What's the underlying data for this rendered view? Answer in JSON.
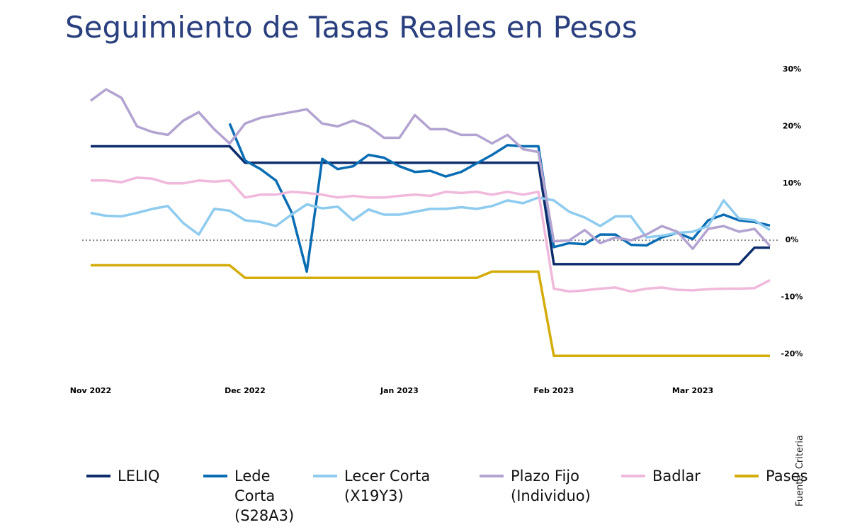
{
  "chart_data": {
    "type": "line",
    "title": "Seguimiento de Tasas Reales en Pesos",
    "source": "Fuente: Criteria",
    "categories": [
      "Nov 2022",
      null,
      null,
      null,
      null,
      null,
      null,
      null,
      null,
      null,
      "Dec 2022",
      null,
      null,
      null,
      null,
      null,
      null,
      null,
      null,
      null,
      "Jan 2023",
      null,
      null,
      null,
      null,
      null,
      null,
      null,
      null,
      null,
      "Feb 2023",
      null,
      null,
      null,
      null,
      null,
      null,
      null,
      null,
      "Mar 2023",
      null,
      null,
      null,
      null,
      null
    ],
    "ylim": [
      -22,
      30
    ],
    "yticks": [
      {
        "value": 30,
        "label": "30%"
      },
      {
        "value": 20,
        "label": "20%"
      },
      {
        "value": 10,
        "label": "10%"
      },
      {
        "value": 0,
        "label": "0%"
      },
      {
        "value": -10,
        "label": "-10%"
      },
      {
        "value": -20,
        "label": "-20%"
      }
    ],
    "y_axis_side": "right",
    "series": [
      {
        "name": "LELIQ",
        "color": "#0d2d6c",
        "values": [
          16.5,
          16.5,
          16.5,
          16.5,
          16.5,
          16.5,
          16.5,
          16.5,
          16.5,
          16.5,
          13.6,
          13.6,
          13.6,
          13.6,
          13.6,
          13.6,
          13.6,
          13.6,
          13.6,
          13.6,
          13.6,
          13.6,
          13.6,
          13.6,
          13.6,
          13.6,
          13.6,
          13.6,
          13.6,
          13.6,
          -4.2,
          -4.2,
          -4.2,
          -4.2,
          -4.2,
          -4.2,
          -4.2,
          -4.2,
          -4.2,
          -4.2,
          -4.2,
          -4.2,
          -4.2,
          -1.3,
          -1.3
        ]
      },
      {
        "name": "Lede Corta (S28A3)",
        "color": "#0a6db3",
        "values": [
          null,
          null,
          null,
          null,
          null,
          null,
          null,
          null,
          null,
          20.5,
          14,
          12.5,
          10.5,
          5,
          -5.5,
          14.3,
          12.5,
          13,
          15,
          14.5,
          13,
          12,
          12.2,
          11.2,
          12,
          13.5,
          15,
          16.7,
          16.5,
          16.5,
          -1.2,
          -0.5,
          -0.7,
          1,
          1,
          -0.8,
          -0.9,
          0.5,
          1.3,
          0.2,
          3.5,
          4.5,
          3.5,
          3.2,
          2.6
        ]
      },
      {
        "name": "Lecer Corta (X19Y3)",
        "color": "#8ecbef",
        "values": [
          4.8,
          4.3,
          4.2,
          4.8,
          5.5,
          6,
          3,
          1,
          5.5,
          5.2,
          3.5,
          3.2,
          2.5,
          4.5,
          6.3,
          5.6,
          5.9,
          3.5,
          5.4,
          4.5,
          4.5,
          5,
          5.5,
          5.5,
          5.8,
          5.5,
          6,
          7,
          6.5,
          7.5,
          7,
          5,
          4,
          2.5,
          4.2,
          4.2,
          0.5,
          0.8,
          1.3,
          1.5,
          2.5,
          7,
          3.8,
          3.5,
          1.8
        ]
      },
      {
        "name": "Plazo Fijo (Individuo)",
        "color": "#b3a3d1",
        "values": [
          24.5,
          26.5,
          25,
          20,
          19,
          18.5,
          21,
          22.5,
          19.5,
          17,
          20.5,
          21.5,
          22,
          22.5,
          23,
          20.5,
          20,
          21,
          20,
          18,
          18,
          22,
          19.5,
          19.5,
          18.5,
          18.5,
          17,
          18.5,
          16,
          15.5,
          -0.2,
          0,
          1.8,
          -0.5,
          0.5,
          0,
          1,
          2.5,
          1.5,
          -1.5,
          2,
          2.5,
          1.5,
          2,
          -1
        ]
      },
      {
        "name": "Badlar",
        "color": "#f0b9dc",
        "values": [
          10.5,
          10.5,
          10.2,
          11,
          10.8,
          10,
          10,
          10.5,
          10.3,
          10.5,
          7.5,
          8,
          8,
          8.5,
          8.3,
          8,
          7.5,
          7.8,
          7.5,
          7.5,
          7.8,
          8,
          7.8,
          8.5,
          8.3,
          8.5,
          8,
          8.5,
          8,
          8.5,
          -8.5,
          -9,
          -8.8,
          -8.5,
          -8.3,
          -9,
          -8.5,
          -8.3,
          -8.7,
          -8.8,
          -8.6,
          -8.5,
          -8.5,
          -8.4,
          -7
        ]
      },
      {
        "name": "Pases",
        "color": "#d4ad0a",
        "values": [
          -4.4,
          -4.4,
          -4.4,
          -4.4,
          -4.4,
          -4.4,
          -4.4,
          -4.4,
          -4.4,
          -4.4,
          -6.6,
          -6.6,
          -6.6,
          -6.6,
          -6.6,
          -6.6,
          -6.6,
          -6.6,
          -6.6,
          -6.6,
          -6.6,
          -6.6,
          -6.6,
          -6.6,
          -6.6,
          -6.6,
          -5.5,
          -5.5,
          -5.5,
          -5.5,
          -20.3,
          -20.3,
          -20.3,
          -20.3,
          -20.3,
          -20.3,
          -20.3,
          -20.3,
          -20.3,
          -20.3,
          -20.3,
          -20.3,
          -20.3,
          -20.3,
          -20.3
        ]
      }
    ]
  }
}
